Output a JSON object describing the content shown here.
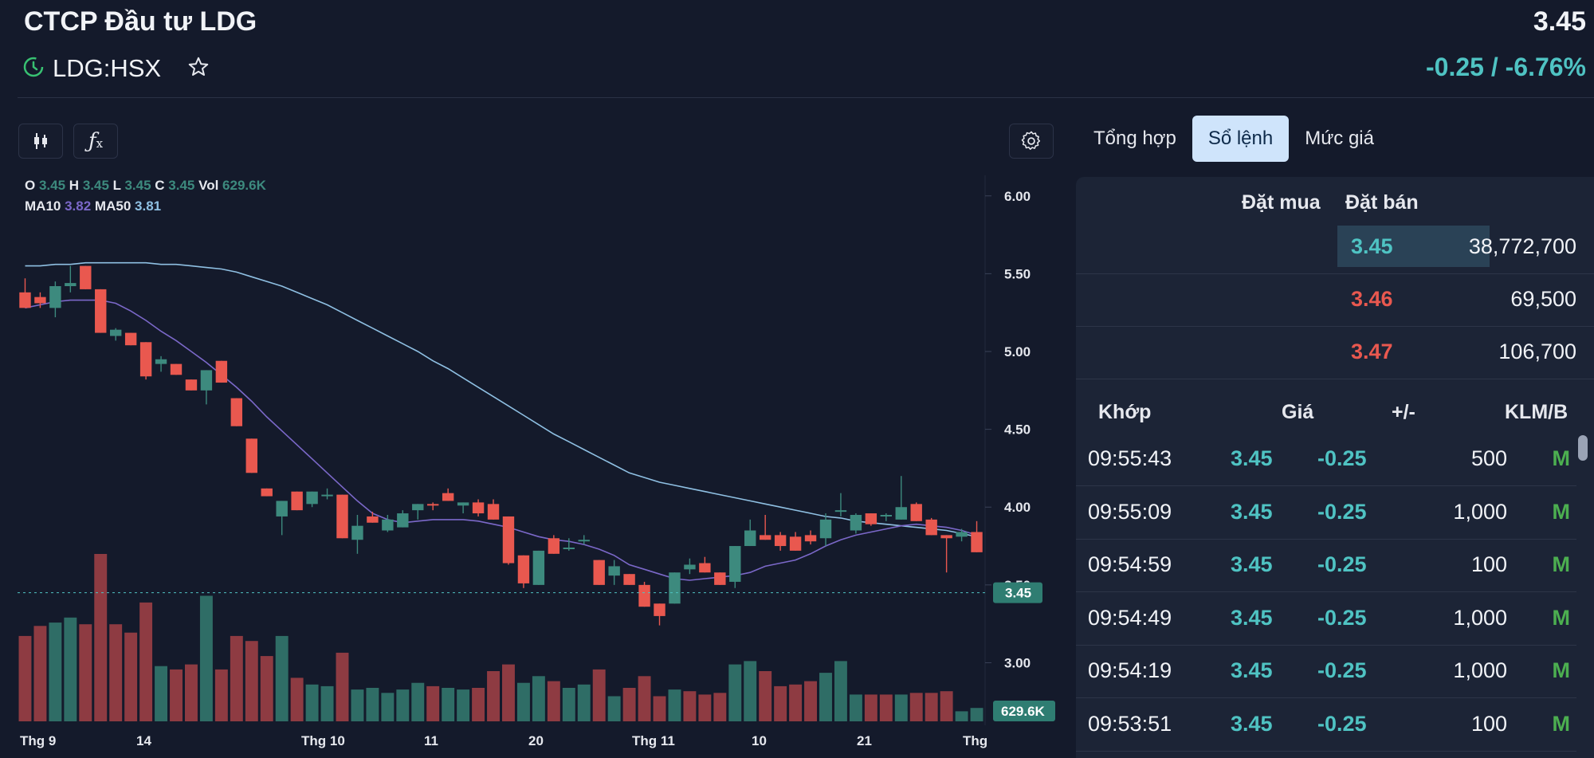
{
  "header": {
    "company": "CTCP Đầu tư LDG",
    "ticker": "LDG:HSX",
    "price": "3.45",
    "change": "-0.25 / -6.76%"
  },
  "legend": {
    "o_label": "O",
    "o": "3.45",
    "h_label": "H",
    "h": "3.45",
    "l_label": "L",
    "l": "3.45",
    "c_label": "C",
    "c": "3.45",
    "vol_label": "Vol",
    "vol": "629.6K",
    "ma10_label": "MA10",
    "ma10": "3.82",
    "ma50_label": "MA50",
    "ma50": "3.81"
  },
  "chart_data": {
    "type": "candlestick",
    "y_ticks": [
      "6.00",
      "5.50",
      "5.00",
      "4.50",
      "4.00",
      "3.50",
      "3.00"
    ],
    "ylim": [
      2.9,
      6.05
    ],
    "x_ticks": [
      "Thg 9",
      "14",
      "Thg 10",
      "11",
      "20",
      "Thg 11",
      "10",
      "21",
      "Thg"
    ],
    "last_price_label": "3.45",
    "last_volume_label": "629.6K",
    "candles": [
      {
        "o": 5.38,
        "h": 5.47,
        "l": 5.28,
        "c": 5.28
      },
      {
        "o": 5.35,
        "h": 5.38,
        "l": 5.28,
        "c": 5.31
      },
      {
        "o": 5.28,
        "h": 5.45,
        "l": 5.22,
        "c": 5.42
      },
      {
        "o": 5.42,
        "h": 5.55,
        "l": 5.38,
        "c": 5.44
      },
      {
        "o": 5.55,
        "h": 5.55,
        "l": 5.4,
        "c": 5.4
      },
      {
        "o": 5.4,
        "h": 5.4,
        "l": 5.12,
        "c": 5.12
      },
      {
        "o": 5.1,
        "h": 5.15,
        "l": 5.07,
        "c": 5.14
      },
      {
        "o": 5.12,
        "h": 5.12,
        "l": 5.04,
        "c": 5.04
      },
      {
        "o": 5.06,
        "h": 5.06,
        "l": 4.82,
        "c": 4.84
      },
      {
        "o": 4.92,
        "h": 4.97,
        "l": 4.87,
        "c": 4.95
      },
      {
        "o": 4.92,
        "h": 4.92,
        "l": 4.85,
        "c": 4.85
      },
      {
        "o": 4.82,
        "h": 4.82,
        "l": 4.75,
        "c": 4.75
      },
      {
        "o": 4.75,
        "h": 4.88,
        "l": 4.66,
        "c": 4.88
      },
      {
        "o": 4.94,
        "h": 4.94,
        "l": 4.8,
        "c": 4.8
      },
      {
        "o": 4.7,
        "h": 4.7,
        "l": 4.52,
        "c": 4.52
      },
      {
        "o": 4.44,
        "h": 4.44,
        "l": 4.22,
        "c": 4.22
      },
      {
        "o": 4.12,
        "h": 4.12,
        "l": 4.07,
        "c": 4.07
      },
      {
        "o": 3.94,
        "h": 4.04,
        "l": 3.82,
        "c": 4.04
      },
      {
        "o": 4.1,
        "h": 4.1,
        "l": 3.98,
        "c": 3.98
      },
      {
        "o": 4.02,
        "h": 4.1,
        "l": 4.0,
        "c": 4.1
      },
      {
        "o": 4.07,
        "h": 4.12,
        "l": 4.05,
        "c": 4.08
      },
      {
        "o": 4.08,
        "h": 4.08,
        "l": 3.8,
        "c": 3.8
      },
      {
        "o": 3.79,
        "h": 3.95,
        "l": 3.7,
        "c": 3.88
      },
      {
        "o": 3.94,
        "h": 3.97,
        "l": 3.9,
        "c": 3.9
      },
      {
        "o": 3.85,
        "h": 3.95,
        "l": 3.84,
        "c": 3.92
      },
      {
        "o": 3.87,
        "h": 3.98,
        "l": 3.87,
        "c": 3.96
      },
      {
        "o": 3.98,
        "h": 4.02,
        "l": 3.92,
        "c": 4.02
      },
      {
        "o": 4.02,
        "h": 4.03,
        "l": 3.98,
        "c": 4.01
      },
      {
        "o": 4.09,
        "h": 4.12,
        "l": 4.04,
        "c": 4.04
      },
      {
        "o": 4.01,
        "h": 4.03,
        "l": 3.96,
        "c": 4.03
      },
      {
        "o": 4.03,
        "h": 4.05,
        "l": 3.94,
        "c": 3.96
      },
      {
        "o": 4.02,
        "h": 4.05,
        "l": 3.92,
        "c": 3.92
      },
      {
        "o": 3.94,
        "h": 3.94,
        "l": 3.63,
        "c": 3.64
      },
      {
        "o": 3.69,
        "h": 3.69,
        "l": 3.48,
        "c": 3.51
      },
      {
        "o": 3.5,
        "h": 3.72,
        "l": 3.5,
        "c": 3.72
      },
      {
        "o": 3.8,
        "h": 3.82,
        "l": 3.7,
        "c": 3.7
      },
      {
        "o": 3.73,
        "h": 3.8,
        "l": 3.72,
        "c": 3.74
      },
      {
        "o": 3.79,
        "h": 3.82,
        "l": 3.76,
        "c": 3.79
      },
      {
        "o": 3.66,
        "h": 3.66,
        "l": 3.5,
        "c": 3.5
      },
      {
        "o": 3.56,
        "h": 3.66,
        "l": 3.5,
        "c": 3.62
      },
      {
        "o": 3.57,
        "h": 3.57,
        "l": 3.5,
        "c": 3.5
      },
      {
        "o": 3.5,
        "h": 3.52,
        "l": 3.36,
        "c": 3.36
      },
      {
        "o": 3.38,
        "h": 3.38,
        "l": 3.24,
        "c": 3.3
      },
      {
        "o": 3.38,
        "h": 3.58,
        "l": 3.38,
        "c": 3.58
      },
      {
        "o": 3.6,
        "h": 3.67,
        "l": 3.57,
        "c": 3.63
      },
      {
        "o": 3.64,
        "h": 3.68,
        "l": 3.58,
        "c": 3.58
      },
      {
        "o": 3.58,
        "h": 3.58,
        "l": 3.5,
        "c": 3.5
      },
      {
        "o": 3.52,
        "h": 3.75,
        "l": 3.48,
        "c": 3.75
      },
      {
        "o": 3.75,
        "h": 3.92,
        "l": 3.75,
        "c": 3.85
      },
      {
        "o": 3.82,
        "h": 3.95,
        "l": 3.79,
        "c": 3.79
      },
      {
        "o": 3.82,
        "h": 3.84,
        "l": 3.72,
        "c": 3.75
      },
      {
        "o": 3.81,
        "h": 3.84,
        "l": 3.72,
        "c": 3.72
      },
      {
        "o": 3.82,
        "h": 3.85,
        "l": 3.76,
        "c": 3.78
      },
      {
        "o": 3.8,
        "h": 3.96,
        "l": 3.75,
        "c": 3.92
      },
      {
        "o": 3.98,
        "h": 4.09,
        "l": 3.94,
        "c": 3.98
      },
      {
        "o": 3.85,
        "h": 3.96,
        "l": 3.83,
        "c": 3.95
      },
      {
        "o": 3.96,
        "h": 3.96,
        "l": 3.88,
        "c": 3.89
      },
      {
        "o": 3.94,
        "h": 3.96,
        "l": 3.91,
        "c": 3.95
      },
      {
        "o": 3.92,
        "h": 4.2,
        "l": 3.92,
        "c": 4.0
      },
      {
        "o": 4.02,
        "h": 4.03,
        "l": 3.91,
        "c": 3.91
      },
      {
        "o": 3.92,
        "h": 3.93,
        "l": 3.82,
        "c": 3.82
      },
      {
        "o": 3.82,
        "h": 3.82,
        "l": 3.58,
        "c": 3.8
      },
      {
        "o": 3.81,
        "h": 3.86,
        "l": 3.78,
        "c": 3.84
      },
      {
        "o": 3.84,
        "h": 3.91,
        "l": 3.71,
        "c": 3.71
      }
    ],
    "volume_colors": [
      "r",
      "r",
      "g",
      "g",
      "r",
      "r",
      "r",
      "r",
      "r",
      "g",
      "r",
      "r",
      "g",
      "r",
      "r",
      "r",
      "r",
      "g",
      "r",
      "g",
      "g",
      "r",
      "g",
      "g",
      "g",
      "g",
      "g",
      "r",
      "g",
      "g",
      "r",
      "r",
      "r",
      "g",
      "g",
      "r",
      "g",
      "g",
      "r",
      "g",
      "r",
      "r",
      "r",
      "g",
      "r",
      "r",
      "r",
      "g",
      "g",
      "r",
      "r",
      "r",
      "r",
      "g",
      "g",
      "g",
      "r",
      "r",
      "g",
      "r",
      "r",
      "r",
      "g",
      "g"
    ],
    "volumes": [
      0.51,
      0.57,
      0.59,
      0.62,
      0.58,
      1.0,
      0.58,
      0.53,
      0.71,
      0.33,
      0.31,
      0.34,
      0.75,
      0.31,
      0.51,
      0.48,
      0.39,
      0.51,
      0.26,
      0.22,
      0.21,
      0.41,
      0.19,
      0.2,
      0.17,
      0.19,
      0.23,
      0.21,
      0.2,
      0.19,
      0.2,
      0.3,
      0.34,
      0.23,
      0.27,
      0.24,
      0.2,
      0.22,
      0.31,
      0.15,
      0.2,
      0.27,
      0.15,
      0.19,
      0.18,
      0.16,
      0.17,
      0.34,
      0.36,
      0.3,
      0.21,
      0.22,
      0.24,
      0.29,
      0.36,
      0.16,
      0.16,
      0.16,
      0.16,
      0.17,
      0.17,
      0.18,
      0.06,
      0.08
    ],
    "vol_colors_note": "",
    "ma10": [
      5.28,
      5.3,
      5.32,
      5.33,
      5.33,
      5.33,
      5.31,
      5.26,
      5.2,
      5.13,
      5.07,
      5.0,
      4.93,
      4.85,
      4.77,
      4.68,
      4.58,
      4.49,
      4.4,
      4.31,
      4.22,
      4.13,
      4.04,
      3.96,
      3.92,
      3.9,
      3.91,
      3.92,
      3.92,
      3.92,
      3.91,
      3.89,
      3.87,
      3.84,
      3.81,
      3.79,
      3.78,
      3.76,
      3.73,
      3.69,
      3.63,
      3.6,
      3.57,
      3.54,
      3.53,
      3.54,
      3.55,
      3.56,
      3.58,
      3.62,
      3.64,
      3.66,
      3.7,
      3.75,
      3.79,
      3.82,
      3.84,
      3.86,
      3.88,
      3.89,
      3.88,
      3.87,
      3.85,
      3.82
    ],
    "ma50": [
      5.55,
      5.55,
      5.56,
      5.56,
      5.57,
      5.57,
      5.57,
      5.57,
      5.57,
      5.56,
      5.56,
      5.55,
      5.54,
      5.53,
      5.51,
      5.48,
      5.45,
      5.42,
      5.38,
      5.34,
      5.3,
      5.25,
      5.2,
      5.15,
      5.1,
      5.05,
      5.0,
      4.94,
      4.89,
      4.83,
      4.77,
      4.71,
      4.65,
      4.59,
      4.53,
      4.47,
      4.42,
      4.37,
      4.32,
      4.27,
      4.22,
      4.19,
      4.16,
      4.14,
      4.12,
      4.1,
      4.08,
      4.06,
      4.04,
      4.02,
      4.0,
      3.98,
      3.96,
      3.94,
      3.93,
      3.91,
      3.9,
      3.89,
      3.88,
      3.87,
      3.86,
      3.85,
      3.83,
      3.81
    ]
  },
  "tabs": [
    "Tổng hợp",
    "Sổ lệnh",
    "Mức giá"
  ],
  "orderbook": {
    "buy_label": "Đặt mua",
    "sell_label": "Đặt bán",
    "rows": [
      {
        "price": "3.45",
        "vol": "38,772,700",
        "color": "#4fc3c3"
      },
      {
        "price": "3.46",
        "vol": "69,500",
        "color": "#e9584f"
      },
      {
        "price": "3.47",
        "vol": "106,700",
        "color": "#e9584f"
      }
    ]
  },
  "trades": {
    "headers": [
      "Khớp",
      "Giá",
      "+/-",
      "KLM/B"
    ],
    "rows": [
      {
        "time": "09:55:43",
        "price": "3.45",
        "chg": "-0.25",
        "vol": "500",
        "side": "M"
      },
      {
        "time": "09:55:09",
        "price": "3.45",
        "chg": "-0.25",
        "vol": "1,000",
        "side": "M"
      },
      {
        "time": "09:54:59",
        "price": "3.45",
        "chg": "-0.25",
        "vol": "100",
        "side": "M"
      },
      {
        "time": "09:54:49",
        "price": "3.45",
        "chg": "-0.25",
        "vol": "1,000",
        "side": "M"
      },
      {
        "time": "09:54:19",
        "price": "3.45",
        "chg": "-0.25",
        "vol": "1,000",
        "side": "M"
      },
      {
        "time": "09:53:51",
        "price": "3.45",
        "chg": "-0.25",
        "vol": "100",
        "side": "M"
      }
    ]
  },
  "colors": {
    "up": "#3d8a7e",
    "down": "#e9584f",
    "ma10": "#7b68c9",
    "ma50": "#8fc0e3",
    "cyan": "#4fc3c3",
    "buy_side": "#4caf50"
  }
}
